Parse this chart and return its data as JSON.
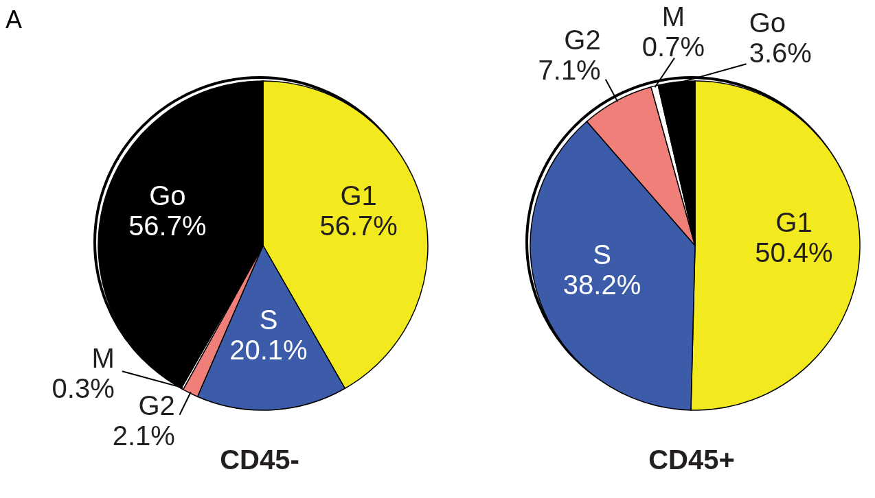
{
  "chart_data": [
    {
      "type": "pie",
      "title": "CD45-",
      "annotations": [
        "A"
      ],
      "categories": [
        "G1",
        "S",
        "G2",
        "M",
        "Go"
      ],
      "values": [
        56.7,
        20.1,
        2.1,
        0.3,
        56.7
      ],
      "value_labels": [
        "56.7%",
        "20.1%",
        "2.1%",
        "0.3%",
        "56.7%"
      ],
      "colors": [
        "#f2ea1f",
        "#3c5ba8",
        "#f07f7a",
        "#ffffff",
        "#000000"
      ],
      "legend": false
    },
    {
      "type": "pie",
      "title": "CD45+",
      "categories": [
        "G1",
        "S",
        "G2",
        "M",
        "Go"
      ],
      "values": [
        50.4,
        38.2,
        7.1,
        0.7,
        3.6
      ],
      "value_labels": [
        "50.4%",
        "38.2%",
        "7.1%",
        "0.7%",
        "3.6%"
      ],
      "colors": [
        "#f2ea1f",
        "#3c5ba8",
        "#f07f7a",
        "#ffffff",
        "#000000"
      ],
      "legend": false
    }
  ]
}
